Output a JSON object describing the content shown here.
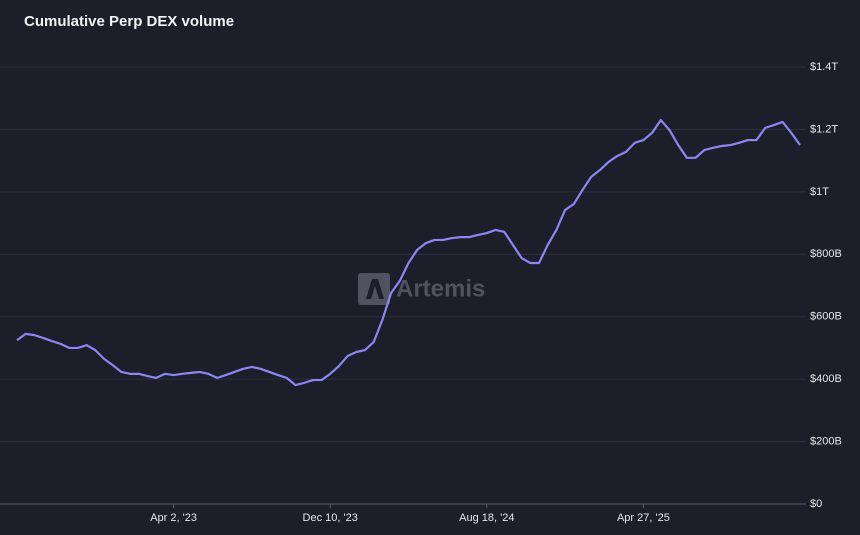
{
  "chart_data": {
    "type": "line",
    "title": "Cumulative Perp DEX volume",
    "watermark": "Artemis",
    "x": [
      "2022-07-24",
      "2022-08-07",
      "2022-08-21",
      "2022-09-04",
      "2022-09-18",
      "2022-10-02",
      "2022-10-16",
      "2022-10-30",
      "2022-11-13",
      "2022-11-27",
      "2022-12-11",
      "2022-12-25",
      "2023-01-08",
      "2023-01-22",
      "2023-02-05",
      "2023-02-19",
      "2023-03-05",
      "2023-03-19",
      "2023-04-02",
      "2023-04-16",
      "2023-04-30",
      "2023-05-14",
      "2023-05-28",
      "2023-06-11",
      "2023-06-25",
      "2023-07-09",
      "2023-07-23",
      "2023-08-06",
      "2023-08-20",
      "2023-09-03",
      "2023-09-17",
      "2023-10-01",
      "2023-10-15",
      "2023-10-29",
      "2023-11-12",
      "2023-11-26",
      "2023-12-10",
      "2023-12-24",
      "2024-01-07",
      "2024-01-21",
      "2024-02-04",
      "2024-02-18",
      "2024-03-03",
      "2024-03-17",
      "2024-03-31",
      "2024-04-14",
      "2024-04-28",
      "2024-05-12",
      "2024-05-26",
      "2024-06-09",
      "2024-06-23",
      "2024-07-07",
      "2024-07-21",
      "2024-08-04",
      "2024-08-18",
      "2024-09-01",
      "2024-09-15",
      "2024-09-29",
      "2024-10-13",
      "2024-10-27",
      "2024-11-10",
      "2024-11-24",
      "2024-12-08",
      "2024-12-22",
      "2025-01-05",
      "2025-01-19",
      "2025-02-02",
      "2025-02-16",
      "2025-03-02",
      "2025-03-16",
      "2025-03-30",
      "2025-04-13",
      "2025-04-27",
      "2025-05-11",
      "2025-05-25",
      "2025-06-08",
      "2025-06-22",
      "2025-07-06",
      "2025-07-20",
      "2025-08-03",
      "2025-08-17",
      "2025-08-31",
      "2025-09-14",
      "2025-09-28",
      "2025-10-12",
      "2025-10-26",
      "2025-11-09",
      "2025-11-23",
      "2025-12-07",
      "2025-12-21",
      "2026-01-04"
    ],
    "series": [
      {
        "color": "#8c86f2",
        "values": [
          525,
          545,
          541,
          532,
          522,
          513,
          500,
          500,
          509,
          493,
          465,
          445,
          423,
          417,
          417,
          410,
          404,
          417,
          413,
          417,
          420,
          423,
          417,
          404,
          413,
          423,
          433,
          439,
          433,
          423,
          413,
          404,
          381,
          388,
          397,
          397,
          417,
          442,
          474,
          487,
          493,
          519,
          590,
          676,
          715,
          772,
          814,
          836,
          846,
          846,
          852,
          855,
          855,
          862,
          868,
          878,
          872,
          830,
          788,
          772,
          772,
          830,
          878,
          942,
          961,
          1006,
          1048,
          1070,
          1096,
          1115,
          1128,
          1157,
          1166,
          1189,
          1230,
          1198,
          1150,
          1109,
          1109,
          1134,
          1141,
          1147,
          1150,
          1157,
          1166,
          1166,
          1205,
          1214,
          1224,
          1189,
          1150
        ]
      }
    ],
    "xlim": [
      "2022-07-24",
      "2026-01-04"
    ],
    "xticks": [
      {
        "value": "2023-04-02",
        "label": "Apr 2, '23"
      },
      {
        "value": "2023-12-10",
        "label": "Dec 10, '23"
      },
      {
        "value": "2024-08-18",
        "label": "Aug 18, '24"
      },
      {
        "value": "2025-04-27",
        "label": "Apr 27, '25"
      }
    ],
    "ylim": [
      0,
      1400
    ],
    "yticks": [
      {
        "value": 0,
        "label": "$0"
      },
      {
        "value": 200,
        "label": "$200B"
      },
      {
        "value": 400,
        "label": "$400B"
      },
      {
        "value": 600,
        "label": "$600B"
      },
      {
        "value": 800,
        "label": "$800B"
      },
      {
        "value": 1000,
        "label": "$1T"
      },
      {
        "value": 1200,
        "label": "$1.2T"
      },
      {
        "value": 1400,
        "label": "$1.4T"
      }
    ],
    "grid": true
  }
}
